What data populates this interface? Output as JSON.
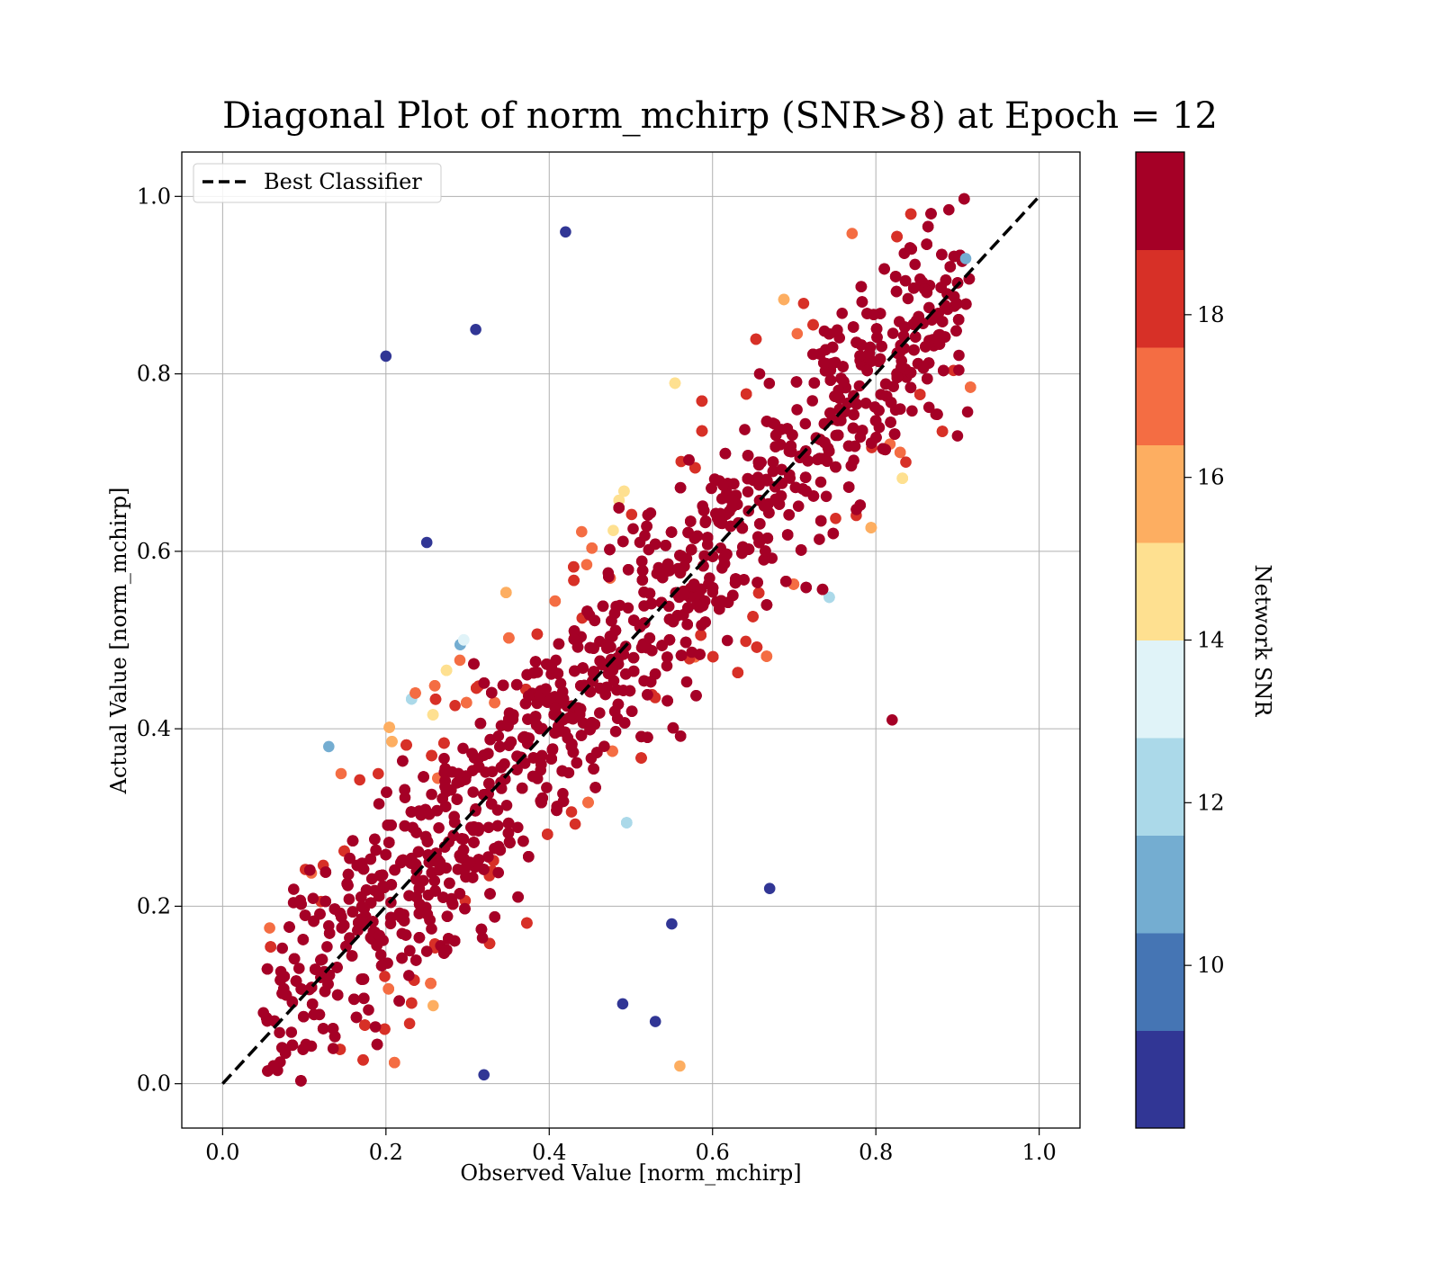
{
  "chart_data": {
    "type": "scatter",
    "title": "Diagonal Plot of norm_mchirp (SNR>8) at Epoch = 12",
    "xlabel": "Observed Value [norm_mchirp]",
    "ylabel": "Actual Value [norm_mchirp]",
    "xlim": [
      -0.05,
      1.05
    ],
    "ylim": [
      -0.05,
      1.05
    ],
    "xticks": [
      "0.0",
      "0.2",
      "0.4",
      "0.6",
      "0.8",
      "1.0"
    ],
    "yticks": [
      "0.0",
      "0.2",
      "0.4",
      "0.6",
      "0.8",
      "1.0"
    ],
    "grid": true,
    "legend": {
      "position": "top-left",
      "entries": [
        {
          "label": "Best Classifier",
          "style": "dashed",
          "color": "#000000"
        }
      ]
    },
    "reference_line": {
      "label": "Best Classifier",
      "x": [
        0.0,
        1.0
      ],
      "y": [
        0.0,
        1.0
      ]
    },
    "colorbar": {
      "label": "Network SNR",
      "range": [
        8,
        20
      ],
      "ticks": [
        "10",
        "12",
        "14",
        "16",
        "18"
      ],
      "colors": [
        "#313695",
        "#4575b4",
        "#74add1",
        "#abd9e9",
        "#e0f3f8",
        "#fee090",
        "#fdae61",
        "#f46d43",
        "#d73027",
        "#a50026"
      ]
    },
    "series": [
      {
        "snr_level": 19,
        "color": "#a50026",
        "description": "dense core along diagonal, roughly |y - x| < 0.25"
      },
      {
        "snr_level": 17,
        "color": "#f46d43"
      },
      {
        "snr_level": 15,
        "color": "#fee090"
      },
      {
        "snr_level": 12,
        "color": "#abd9e9"
      },
      {
        "snr_level": 9,
        "color": "#313695",
        "description": "sparse outliers away from diagonal"
      }
    ],
    "points_sample": [
      {
        "x": 0.2,
        "y": 0.82,
        "snr": 9
      },
      {
        "x": 0.31,
        "y": 0.85,
        "snr": 9
      },
      {
        "x": 0.42,
        "y": 0.96,
        "snr": 9
      },
      {
        "x": 0.25,
        "y": 0.61,
        "snr": 9
      },
      {
        "x": 0.13,
        "y": 0.38,
        "snr": 11
      },
      {
        "x": 0.53,
        "y": 0.07,
        "snr": 9
      },
      {
        "x": 0.49,
        "y": 0.09,
        "snr": 9
      },
      {
        "x": 0.55,
        "y": 0.18,
        "snr": 9
      },
      {
        "x": 0.67,
        "y": 0.22,
        "snr": 9
      },
      {
        "x": 0.82,
        "y": 0.41,
        "snr": 19
      },
      {
        "x": 0.9,
        "y": 0.73,
        "snr": 19
      },
      {
        "x": 0.91,
        "y": 0.93,
        "snr": 11
      },
      {
        "x": 0.56,
        "y": 0.02,
        "snr": 16
      },
      {
        "x": 0.32,
        "y": 0.01,
        "snr": 9
      },
      {
        "x": 0.05,
        "y": 0.08,
        "snr": 19
      }
    ]
  }
}
